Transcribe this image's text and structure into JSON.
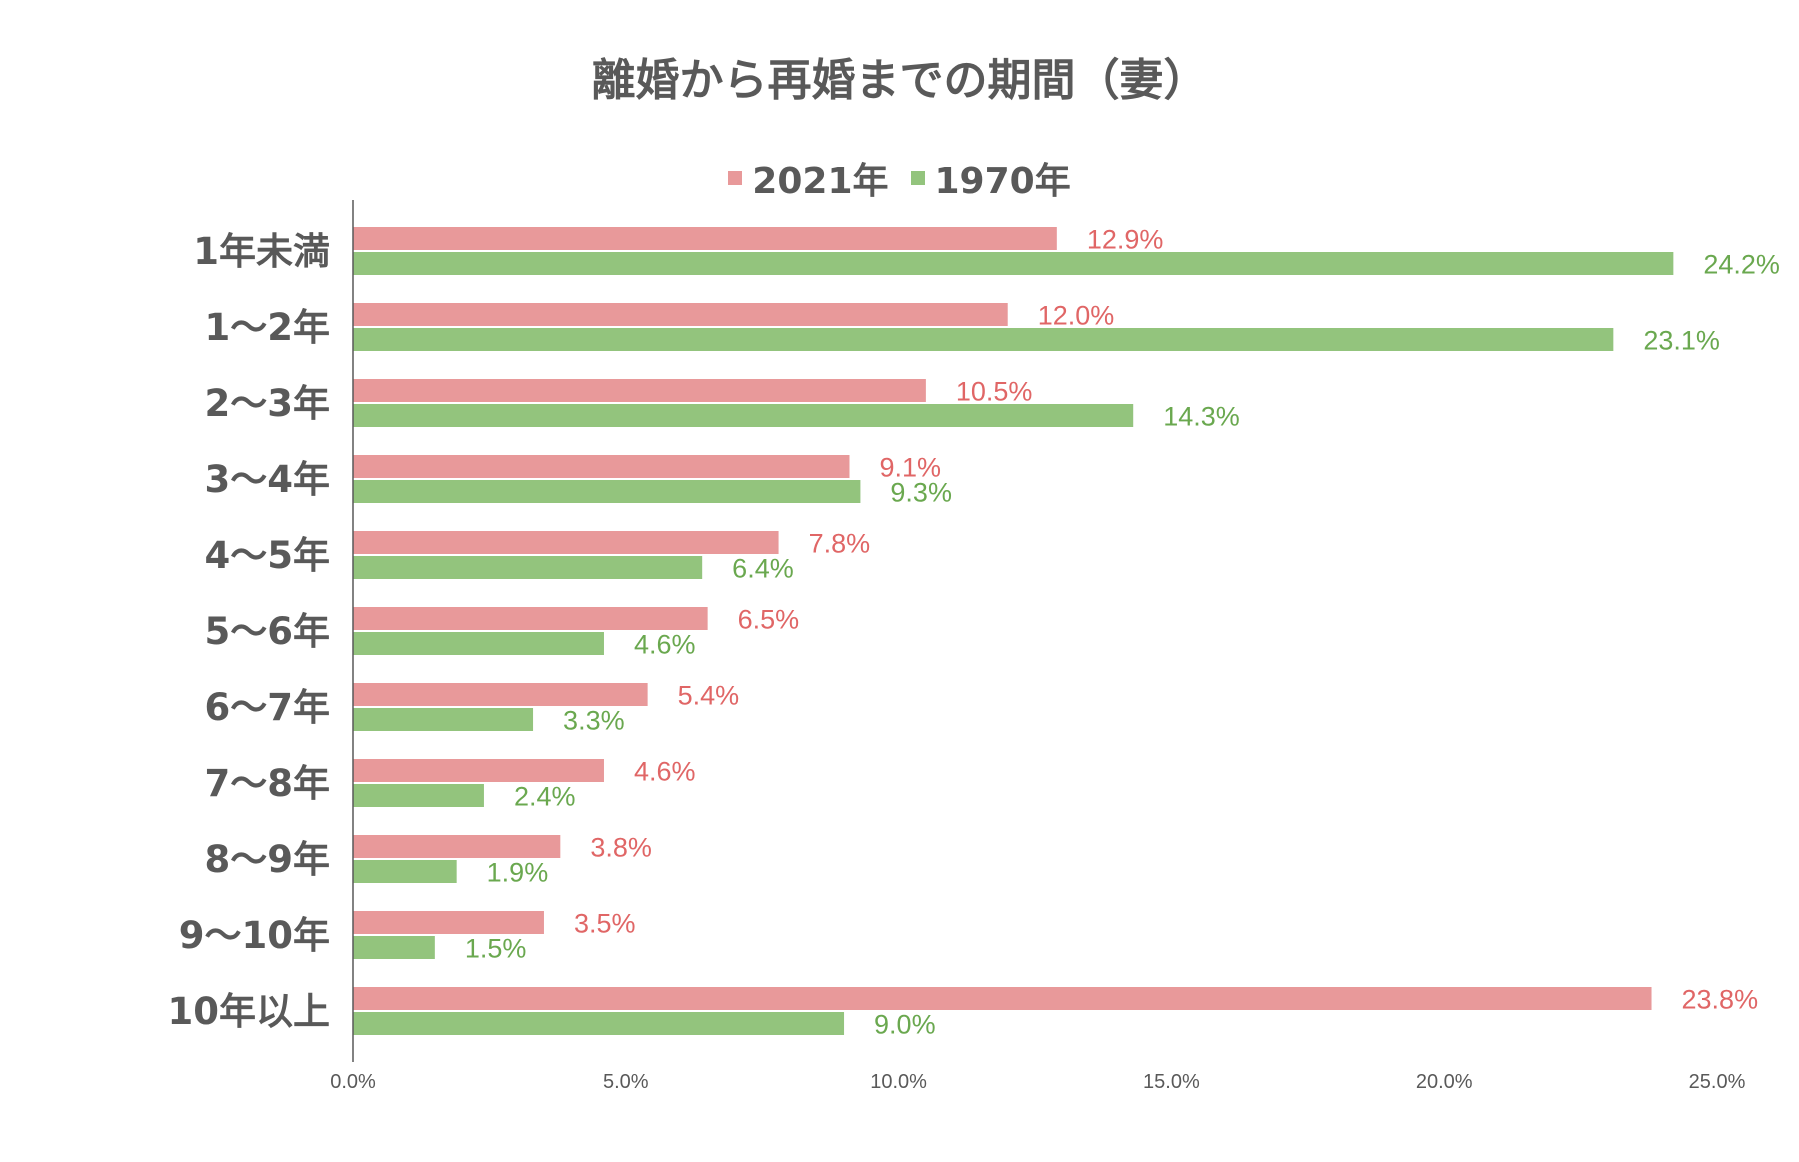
{
  "colors": {
    "series_2021": "#e8999a",
    "series_1970": "#93c47d",
    "label_2021": "#e06666",
    "label_1970": "#6aa84f",
    "text": "#595959",
    "axis": "#595959"
  },
  "chart_data": {
    "type": "bar",
    "orientation": "horizontal",
    "title": "離婚から再婚までの期間（妻）",
    "categories": [
      "1年未満",
      "1～2年",
      "2～3年",
      "3～4年",
      "4～5年",
      "5～6年",
      "6～7年",
      "7～8年",
      "8～9年",
      "9～10年",
      "10年以上"
    ],
    "series": [
      {
        "name": "2021年",
        "values": [
          12.9,
          12.0,
          10.5,
          9.1,
          7.8,
          6.5,
          5.4,
          4.6,
          3.8,
          3.5,
          23.8
        ],
        "labels": [
          "12.9%",
          "12.0%",
          "10.5%",
          "9.1%",
          "7.8%",
          "6.5%",
          "5.4%",
          "4.6%",
          "3.8%",
          "3.5%",
          "23.8%"
        ]
      },
      {
        "name": "1970年",
        "values": [
          24.2,
          23.1,
          14.3,
          9.3,
          6.4,
          4.6,
          3.3,
          2.4,
          1.9,
          1.5,
          9.0
        ],
        "labels": [
          "24.2%",
          "23.1%",
          "14.3%",
          "9.3%",
          "6.4%",
          "4.6%",
          "3.3%",
          "2.4%",
          "1.9%",
          "1.5%",
          "9.0%"
        ]
      }
    ],
    "xlim": [
      0,
      25
    ],
    "xticks": [
      "0.0%",
      "5.0%",
      "10.0%",
      "15.0%",
      "20.0%",
      "25.0%"
    ],
    "xlabel": "",
    "ylabel": "",
    "grid": false,
    "legend_position": "top"
  }
}
